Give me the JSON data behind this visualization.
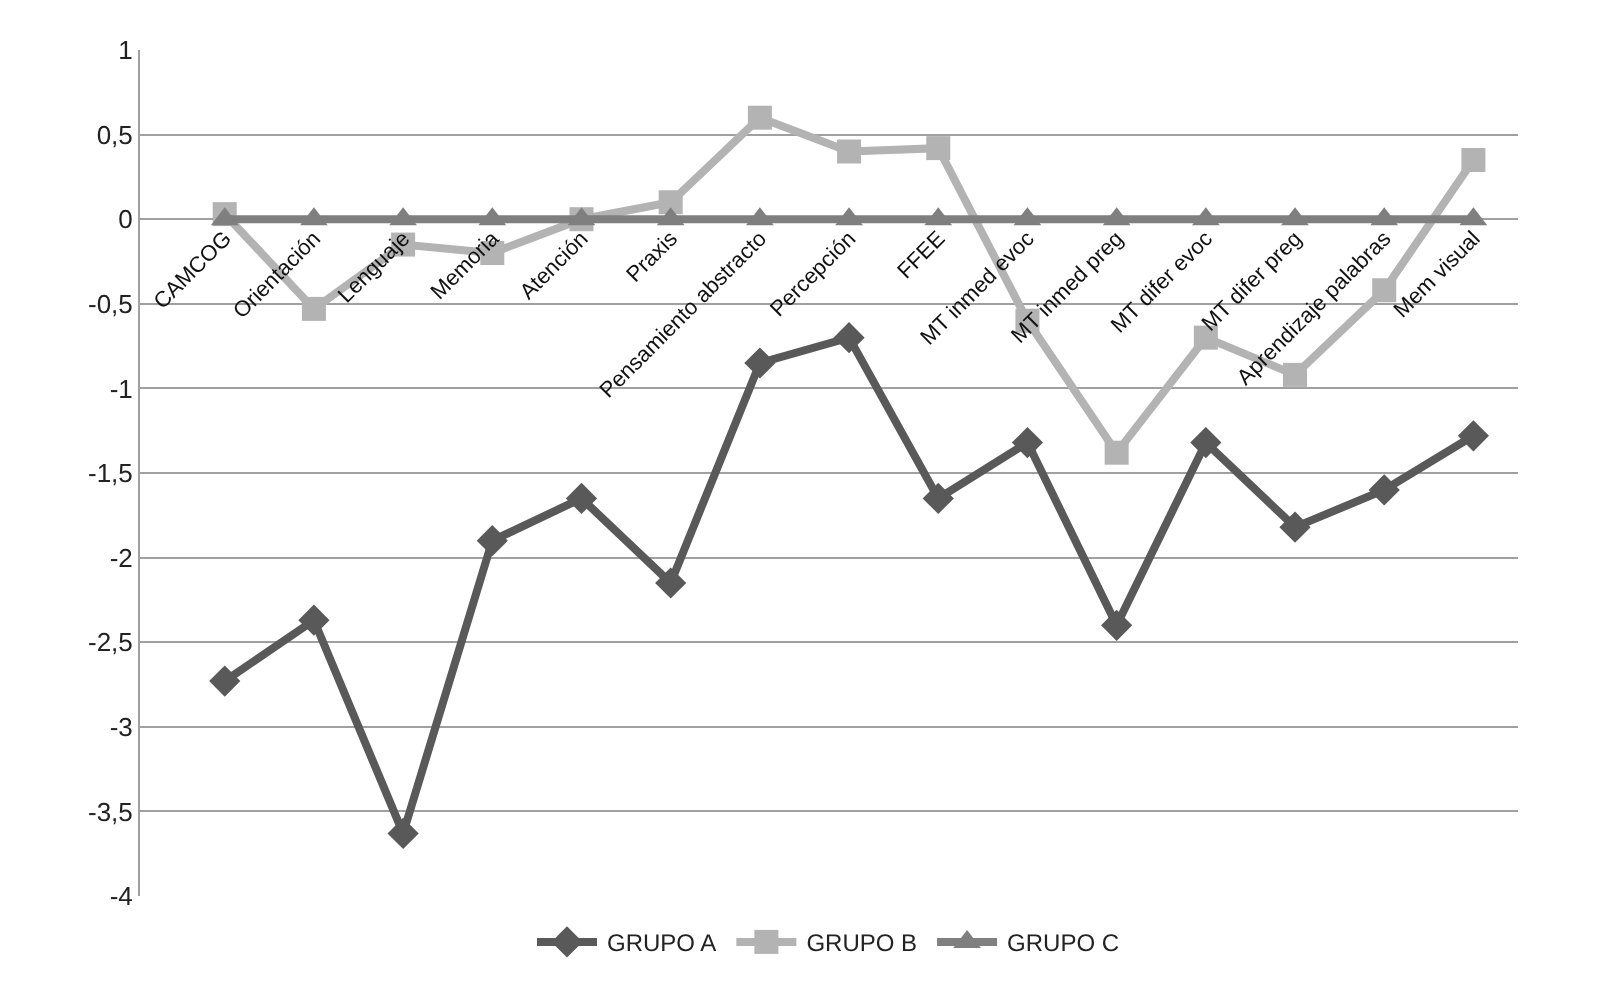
{
  "chart_data": {
    "type": "line",
    "categories": [
      "CAMCOG",
      "Orientación",
      "Lenguaje",
      "Memoria",
      "Atención",
      "Praxis",
      "Pensamiento abstracto",
      "Percepción",
      "FFEE",
      "MT inmed evoc",
      "MT inmed preg",
      "MT difer evoc",
      "MT difer preg",
      "Aprendizaje palabras",
      "Mem visual"
    ],
    "series": [
      {
        "name": "GRUPO A",
        "color": "#595959",
        "marker": "diamond",
        "values": [
          -2.73,
          -2.37,
          -3.63,
          -1.9,
          -1.65,
          -2.15,
          -0.85,
          -0.7,
          -1.65,
          -1.32,
          -2.4,
          -1.32,
          -1.82,
          -1.6,
          -1.28
        ]
      },
      {
        "name": "GRUPO B",
        "color": "#b3b3b3",
        "marker": "square",
        "values": [
          0.03,
          -0.53,
          -0.15,
          -0.2,
          0,
          0.1,
          0.6,
          0.4,
          0.42,
          -0.6,
          -1.38,
          -0.7,
          -0.92,
          -0.42,
          0.35
        ]
      },
      {
        "name": "GRUPO C",
        "color": "#7f7f7f",
        "marker": "triangle",
        "values": [
          0,
          0,
          0,
          0,
          0,
          0,
          0,
          0,
          0,
          0,
          0,
          0,
          0,
          0,
          0
        ]
      }
    ],
    "ylim": [
      -4,
      1
    ],
    "yticks": [
      {
        "value": -4,
        "label": "-4"
      },
      {
        "value": -3.5,
        "label": "-3,5"
      },
      {
        "value": -3,
        "label": "-3"
      },
      {
        "value": -2.5,
        "label": "-2,5"
      },
      {
        "value": -2,
        "label": "-2"
      },
      {
        "value": -1.5,
        "label": "-1,5"
      },
      {
        "value": -1,
        "label": "-1"
      },
      {
        "value": -0.5,
        "label": "-0,5"
      },
      {
        "value": 0,
        "label": "0"
      },
      {
        "value": 0.5,
        "label": "0,5"
      },
      {
        "value": 1,
        "label": "1"
      }
    ],
    "grid": "y",
    "legend": "bottom",
    "line_style": "solid"
  }
}
